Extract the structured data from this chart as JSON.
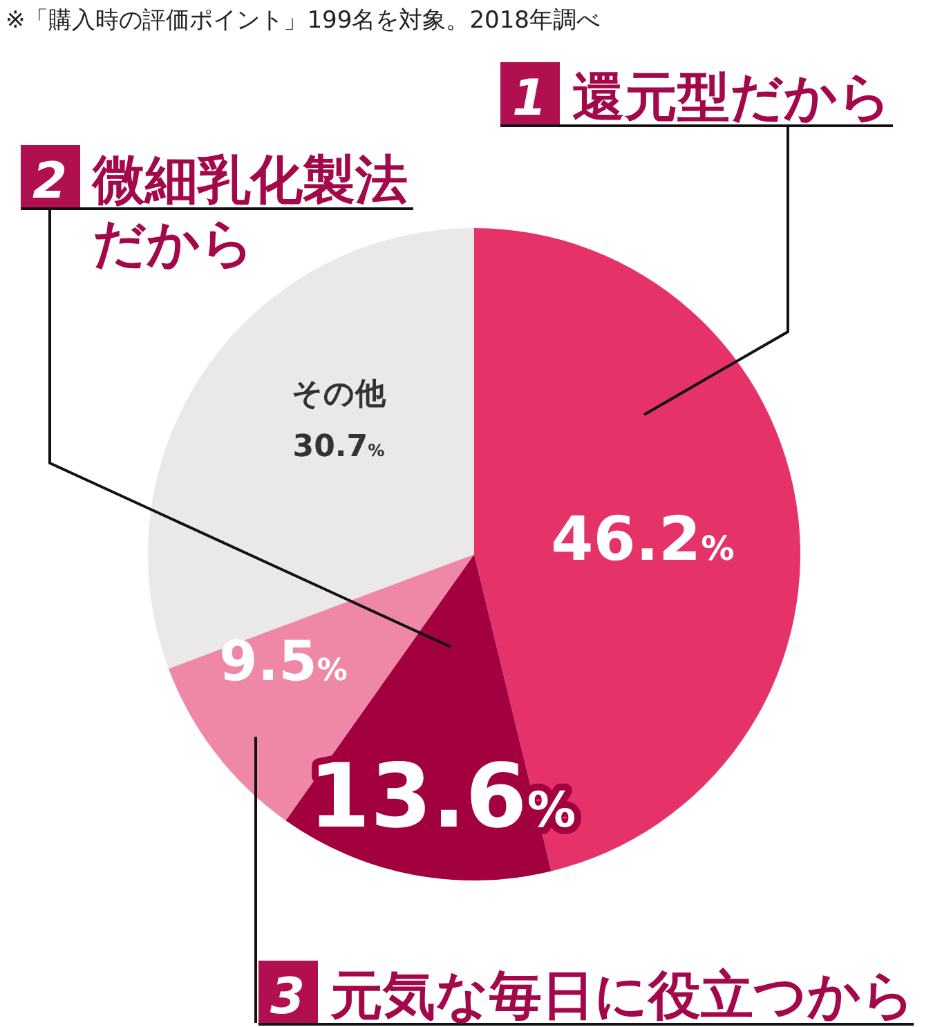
{
  "chart_data": {
    "type": "pie",
    "title": "※「購入時の評価ポイント」199名を対象。2018年調べ",
    "categories": [
      "1 還元型だから",
      "2 微細乳化製法だから",
      "3 元気な毎日に役立つから",
      "その他"
    ],
    "values": [
      46.2,
      13.6,
      9.5,
      30.7
    ],
    "colors": [
      "#e5336a",
      "#a3003f",
      "#ee88a6",
      "#ebe9e7"
    ],
    "value_labels": [
      "46.2%",
      "13.6%",
      "9.5%",
      "30.7%"
    ]
  }
}
